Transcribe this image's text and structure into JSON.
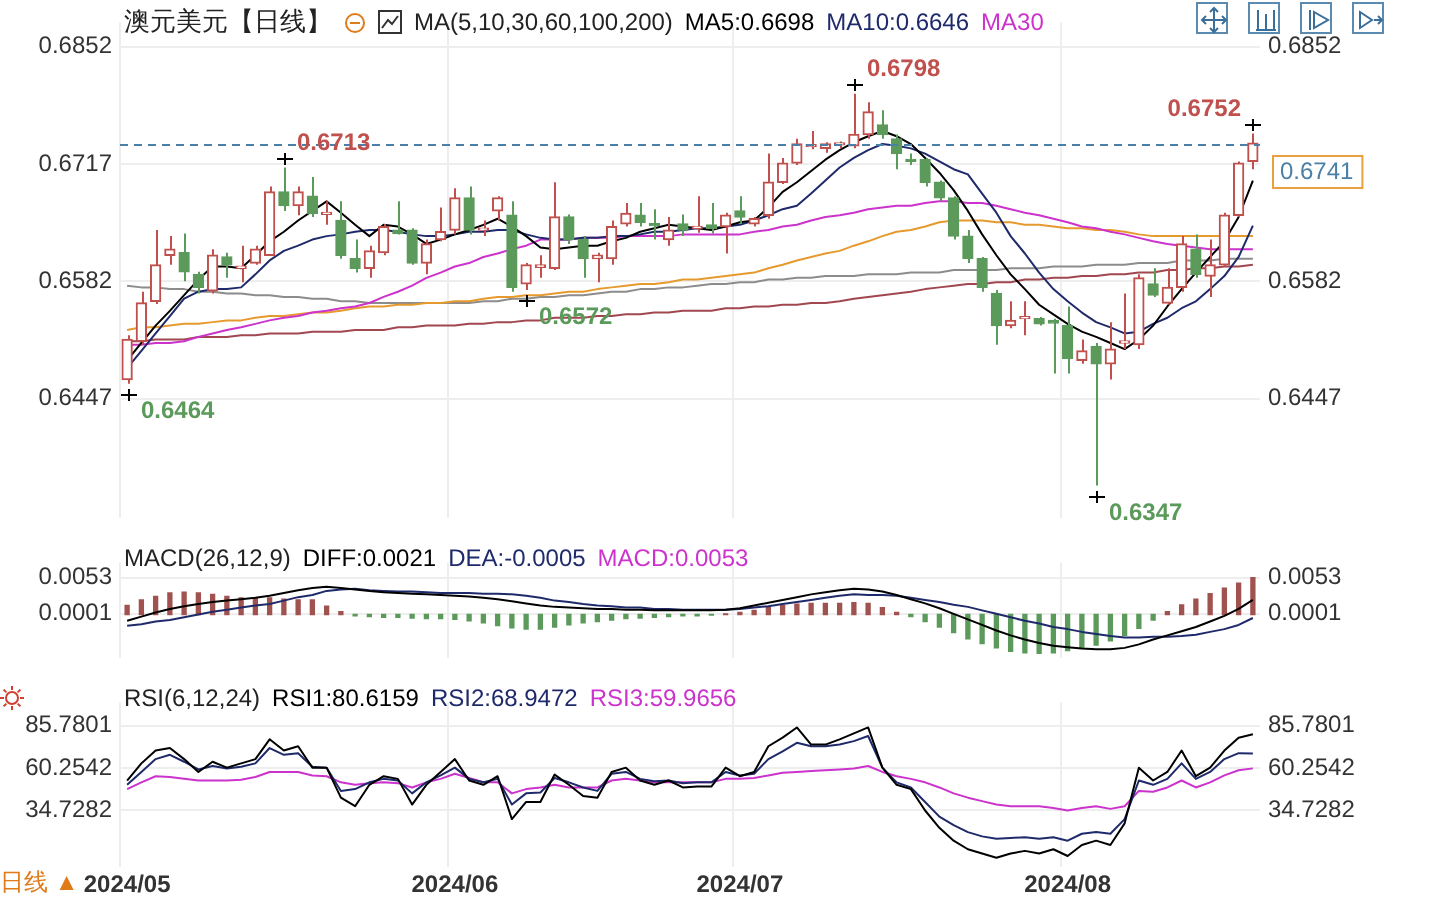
{
  "chart_data": [
    {
      "type": "candlestick",
      "title": "澳元美元【日线】",
      "legend_title": "MA(5,10,30,60,100,200)",
      "legend": "top",
      "grid": true,
      "tick_labels": "y",
      "categories": [
        "2024/05",
        null,
        null,
        null,
        null,
        null,
        null,
        null,
        null,
        null,
        null,
        null,
        null,
        null,
        null,
        null,
        null,
        null,
        null,
        null,
        null,
        null,
        null,
        "2024/06",
        null,
        null,
        null,
        null,
        null,
        null,
        null,
        null,
        null,
        null,
        null,
        null,
        null,
        null,
        null,
        null,
        null,
        null,
        null,
        "2024/07",
        null,
        null,
        null,
        null,
        null,
        null,
        null,
        null,
        null,
        null,
        null,
        null,
        null,
        null,
        null,
        null,
        null,
        null,
        null,
        null,
        null,
        null,
        "2024/08",
        null,
        null,
        null,
        null,
        null,
        null,
        null,
        null,
        null,
        null,
        null,
        null,
        null
      ],
      "ohlc": [
        [
          0.6469,
          0.652,
          0.6464,
          0.6515
        ],
        [
          0.6513,
          0.657,
          0.6509,
          0.6557
        ],
        [
          0.6559,
          0.6641,
          0.6556,
          0.6601
        ],
        [
          0.6612,
          0.6634,
          0.6601,
          0.6619
        ],
        [
          0.6615,
          0.6637,
          0.6582,
          0.6593
        ],
        [
          0.659,
          0.6593,
          0.6568,
          0.6575
        ],
        [
          0.6571,
          0.6619,
          0.6568,
          0.6612
        ],
        [
          0.661,
          0.6615,
          0.6586,
          0.6601
        ],
        [
          0.6597,
          0.6623,
          0.6581,
          0.6599
        ],
        [
          0.6603,
          0.6623,
          0.6601,
          0.6619
        ],
        [
          0.6612,
          0.6691,
          0.6612,
          0.6685
        ],
        [
          0.6685,
          0.6713,
          0.6663,
          0.6669
        ],
        [
          0.6669,
          0.6691,
          0.6658,
          0.6685
        ],
        [
          0.668,
          0.6702,
          0.6656,
          0.666
        ],
        [
          0.6659,
          0.6674,
          0.6647,
          0.6661
        ],
        [
          0.6652,
          0.6674,
          0.6608,
          0.6612
        ],
        [
          0.6608,
          0.663,
          0.6592,
          0.6597
        ],
        [
          0.6597,
          0.6623,
          0.6586,
          0.6617
        ],
        [
          0.6615,
          0.6648,
          0.6612,
          0.6645
        ],
        [
          0.6641,
          0.6674,
          0.6636,
          0.6637
        ],
        [
          0.6641,
          0.6643,
          0.6601,
          0.6603
        ],
        [
          0.6603,
          0.663,
          0.659,
          0.6625
        ],
        [
          0.663,
          0.6667,
          0.6628,
          0.6639
        ],
        [
          0.6641,
          0.6689,
          0.6636,
          0.6678
        ],
        [
          0.6678,
          0.6691,
          0.6636,
          0.6641
        ],
        [
          0.6641,
          0.6652,
          0.6634,
          0.6643
        ],
        [
          0.6663,
          0.668,
          0.6652,
          0.6678
        ],
        [
          0.6658,
          0.6674,
          0.657,
          0.6575
        ],
        [
          0.6579,
          0.6603,
          0.6572,
          0.6601
        ],
        [
          0.6598,
          0.6612,
          0.6586,
          0.6601
        ],
        [
          0.6597,
          0.6696,
          0.6595,
          0.6656
        ],
        [
          0.6656,
          0.6659,
          0.6625,
          0.663
        ],
        [
          0.663,
          0.6634,
          0.6586,
          0.6608
        ],
        [
          0.6608,
          0.6615,
          0.6581,
          0.6612
        ],
        [
          0.6608,
          0.6652,
          0.6601,
          0.6645
        ],
        [
          0.6648,
          0.6672,
          0.6645,
          0.666
        ],
        [
          0.6658,
          0.6672,
          0.6645,
          0.665
        ],
        [
          0.6648,
          0.6665,
          0.663,
          0.6646
        ],
        [
          0.663,
          0.6656,
          0.6623,
          0.6641
        ],
        [
          0.6648,
          0.6659,
          0.6634,
          0.6641
        ],
        [
          0.6643,
          0.668,
          0.6638,
          0.6645
        ],
        [
          0.6647,
          0.6672,
          0.6637,
          0.6643
        ],
        [
          0.6645,
          0.6661,
          0.6614,
          0.6658
        ],
        [
          0.6663,
          0.668,
          0.6648,
          0.6656
        ],
        [
          0.6648,
          0.6656,
          0.6645,
          0.6654
        ],
        [
          0.6658,
          0.6729,
          0.6654,
          0.6696
        ],
        [
          0.6696,
          0.6724,
          0.6694,
          0.6718
        ],
        [
          0.6718,
          0.6746,
          0.6716,
          0.674
        ],
        [
          0.6737,
          0.6755,
          0.6734,
          0.6739
        ],
        [
          0.6735,
          0.6742,
          0.673,
          0.674
        ],
        [
          0.6739,
          0.6743,
          0.6735,
          0.6741
        ],
        [
          0.6738,
          0.6798,
          0.6735,
          0.6751
        ],
        [
          0.6751,
          0.6788,
          0.6746,
          0.6777
        ],
        [
          0.6762,
          0.6779,
          0.6746,
          0.6751
        ],
        [
          0.6746,
          0.6751,
          0.6711,
          0.6729
        ],
        [
          0.6722,
          0.6729,
          0.6716,
          0.672
        ],
        [
          0.6722,
          0.6724,
          0.6691,
          0.6696
        ],
        [
          0.6696,
          0.6698,
          0.6674,
          0.6678
        ],
        [
          0.6678,
          0.668,
          0.663,
          0.6634
        ],
        [
          0.6634,
          0.6641,
          0.6603,
          0.6608
        ],
        [
          0.6608,
          0.661,
          0.657,
          0.6575
        ],
        [
          0.6568,
          0.6572,
          0.6509,
          0.6531
        ],
        [
          0.6531,
          0.6559,
          0.6528,
          0.6537
        ],
        [
          0.6539,
          0.6559,
          0.652,
          0.6541
        ],
        [
          0.6539,
          0.6541,
          0.6531,
          0.6533
        ],
        [
          0.6537,
          0.6539,
          0.6476,
          0.6534
        ],
        [
          0.6531,
          0.6553,
          0.6476,
          0.6493
        ],
        [
          0.6491,
          0.6515,
          0.6487,
          0.6502
        ],
        [
          0.6507,
          0.6511,
          0.6347,
          0.6487
        ],
        [
          0.6487,
          0.6535,
          0.6469,
          0.6504
        ],
        [
          0.6511,
          0.6568,
          0.6504,
          0.6513
        ],
        [
          0.6509,
          0.659,
          0.6504,
          0.6586
        ],
        [
          0.6579,
          0.6597,
          0.6564,
          0.6566
        ],
        [
          0.6557,
          0.6597,
          0.6555,
          0.6575
        ],
        [
          0.6575,
          0.6634,
          0.657,
          0.6625
        ],
        [
          0.6619,
          0.6636,
          0.6586,
          0.659
        ],
        [
          0.6588,
          0.663,
          0.6564,
          0.6601
        ],
        [
          0.6601,
          0.6661,
          0.6599,
          0.6658
        ],
        [
          0.6658,
          0.672,
          0.6656,
          0.6718
        ],
        [
          0.672,
          0.6752,
          0.6711,
          0.6741
        ]
      ],
      "colors": [
        "#c0504d",
        "#c0504d",
        "#c0504d",
        "#c0504d",
        "#5b9a5b",
        "#5b9a5b",
        "#c0504d",
        "#5b9a5b",
        "#c0504d",
        "#c0504d",
        "#c0504d",
        "#5b9a5b",
        "#c0504d",
        "#5b9a5b",
        "#c0504d",
        "#5b9a5b",
        "#5b9a5b",
        "#c0504d",
        "#c0504d",
        "#5b9a5b",
        "#5b9a5b",
        "#c0504d",
        "#c0504d",
        "#c0504d",
        "#5b9a5b",
        "#c0504d",
        "#c0504d",
        "#5b9a5b",
        "#c0504d",
        "#c0504d",
        "#c0504d",
        "#5b9a5b",
        "#5b9a5b",
        "#c0504d",
        "#c0504d",
        "#c0504d",
        "#5b9a5b",
        "#5b9a5b",
        "#c0504d",
        "#5b9a5b",
        "#c0504d",
        "#5b9a5b",
        "#c0504d",
        "#5b9a5b",
        "#c0504d",
        "#c0504d",
        "#c0504d",
        "#c0504d",
        "#c0504d",
        "#c0504d",
        "#c0504d",
        "#c0504d",
        "#c0504d",
        "#5b9a5b",
        "#5b9a5b",
        "#5b9a5b",
        "#5b9a5b",
        "#5b9a5b",
        "#5b9a5b",
        "#5b9a5b",
        "#5b9a5b",
        "#5b9a5b",
        "#c0504d",
        "#c0504d",
        "#5b9a5b",
        "#5b9a5b",
        "#5b9a5b",
        "#c0504d",
        "#5b9a5b",
        "#c0504d",
        "#c0504d",
        "#c0504d",
        "#5b9a5b",
        "#c0504d",
        "#c0504d",
        "#5b9a5b",
        "#c0504d",
        "#c0504d",
        "#c0504d",
        "#c0504d"
      ],
      "series": [
        {
          "type": "line",
          "name": "MA5:0.6698",
          "color": "#000000",
          "values": [
            0.6491,
            0.6511,
            0.6531,
            0.6548,
            0.6566,
            0.6584,
            0.6599,
            0.6599,
            0.6597,
            0.6612,
            0.6628,
            0.6639,
            0.6652,
            0.6663,
            0.6674,
            0.6661,
            0.6647,
            0.6634,
            0.6647,
            0.6645,
            0.6636,
            0.6625,
            0.663,
            0.6636,
            0.6641,
            0.6647,
            0.6654,
            0.6645,
            0.6634,
            0.6621,
            0.6619,
            0.6621,
            0.6623,
            0.6623,
            0.6628,
            0.6632,
            0.6639,
            0.6643,
            0.6647,
            0.6645,
            0.6643,
            0.6641,
            0.6645,
            0.665,
            0.6652,
            0.6667,
            0.6685,
            0.6696,
            0.6709,
            0.6722,
            0.6733,
            0.6742,
            0.6749,
            0.6755,
            0.6749,
            0.674,
            0.6724,
            0.6707,
            0.6687,
            0.6663,
            0.6636,
            0.6612,
            0.659,
            0.6573,
            0.6555,
            0.6544,
            0.6533,
            0.6524,
            0.6518,
            0.6511,
            0.6504,
            0.6515,
            0.6531,
            0.6553,
            0.6573,
            0.6592,
            0.661,
            0.6628,
            0.6656,
            0.6698
          ]
        },
        {
          "type": "line",
          "name": "MA10:0.6646",
          "color": "#1f2a6b",
          "values": [
            0.6482,
            0.6502,
            0.6522,
            0.6542,
            0.6562,
            0.657,
            0.6573,
            0.6573,
            0.6575,
            0.659,
            0.6606,
            0.6617,
            0.6623,
            0.663,
            0.6634,
            0.6636,
            0.6639,
            0.6641,
            0.6641,
            0.6639,
            0.6636,
            0.6634,
            0.6634,
            0.6636,
            0.6639,
            0.6639,
            0.6641,
            0.6641,
            0.6636,
            0.6632,
            0.663,
            0.663,
            0.6632,
            0.6632,
            0.6634,
            0.6634,
            0.6636,
            0.6639,
            0.6639,
            0.6641,
            0.6643,
            0.6643,
            0.6645,
            0.6647,
            0.6652,
            0.6658,
            0.6665,
            0.6669,
            0.6683,
            0.6698,
            0.6713,
            0.6724,
            0.6733,
            0.674,
            0.6738,
            0.6735,
            0.6729,
            0.672,
            0.6711,
            0.6705,
            0.6683,
            0.6661,
            0.6634,
            0.6614,
            0.6592,
            0.6573,
            0.6559,
            0.6546,
            0.6535,
            0.6529,
            0.6522,
            0.6524,
            0.6533,
            0.654,
            0.6551,
            0.6559,
            0.6573,
            0.6588,
            0.661,
            0.6646
          ]
        },
        {
          "type": "line",
          "name": "MA30",
          "color": "#cc33cc",
          "values": [
            0.6509,
            0.6509,
            0.6511,
            0.6511,
            0.6513,
            0.6518,
            0.6522,
            0.6526,
            0.6529,
            0.6533,
            0.6537,
            0.654,
            0.6542,
            0.6546,
            0.6548,
            0.6551,
            0.6553,
            0.6557,
            0.6564,
            0.657,
            0.6577,
            0.6586,
            0.6592,
            0.6599,
            0.6603,
            0.661,
            0.6614,
            0.6619,
            0.6623,
            0.663,
            0.663,
            0.663,
            0.6632,
            0.6632,
            0.6632,
            0.6634,
            0.6634,
            0.6634,
            0.6634,
            0.6636,
            0.6636,
            0.6636,
            0.6636,
            0.6636,
            0.6639,
            0.6641,
            0.6645,
            0.6647,
            0.6652,
            0.6656,
            0.6658,
            0.6661,
            0.6665,
            0.6667,
            0.6669,
            0.6669,
            0.6672,
            0.6674,
            0.6674,
            0.6672,
            0.6672,
            0.6669,
            0.6665,
            0.6661,
            0.6658,
            0.6654,
            0.665,
            0.6645,
            0.6643,
            0.6639,
            0.6636,
            0.6632,
            0.6628,
            0.6625,
            0.6623,
            0.6621,
            0.6619,
            0.6619,
            0.6619,
            0.6619
          ]
        },
        {
          "type": "line",
          "color": "#e69a2e",
          "values": [
            0.6526,
            0.6529,
            0.6529,
            0.6531,
            0.6533,
            0.6533,
            0.6535,
            0.6537,
            0.6537,
            0.654,
            0.6542,
            0.6542,
            0.6544,
            0.6546,
            0.6546,
            0.6548,
            0.6551,
            0.6553,
            0.6553,
            0.6555,
            0.6555,
            0.6557,
            0.6557,
            0.6559,
            0.6559,
            0.6562,
            0.6564,
            0.6564,
            0.6566,
            0.6566,
            0.6568,
            0.657,
            0.657,
            0.6573,
            0.6575,
            0.6577,
            0.6579,
            0.6579,
            0.6581,
            0.6584,
            0.6584,
            0.6586,
            0.6588,
            0.659,
            0.6592,
            0.6597,
            0.6601,
            0.6606,
            0.661,
            0.6614,
            0.6617,
            0.6623,
            0.6628,
            0.6634,
            0.6639,
            0.6641,
            0.6645,
            0.665,
            0.6652,
            0.6652,
            0.6652,
            0.665,
            0.665,
            0.6647,
            0.6647,
            0.6645,
            0.6643,
            0.6643,
            0.6641,
            0.6641,
            0.6639,
            0.6636,
            0.6634,
            0.6634,
            0.6634,
            0.6634,
            0.6634,
            0.6634,
            0.6634,
            0.6634
          ]
        },
        {
          "type": "line",
          "color": "#8c8c8c",
          "values": [
            0.6577,
            0.6575,
            0.6575,
            0.6573,
            0.6573,
            0.657,
            0.657,
            0.6568,
            0.6568,
            0.6566,
            0.6566,
            0.6564,
            0.6564,
            0.6562,
            0.6562,
            0.6559,
            0.6559,
            0.6557,
            0.6557,
            0.6557,
            0.6557,
            0.6557,
            0.6557,
            0.6557,
            0.6557,
            0.6559,
            0.6559,
            0.6562,
            0.6562,
            0.6564,
            0.6564,
            0.6566,
            0.6566,
            0.6568,
            0.657,
            0.657,
            0.6573,
            0.6573,
            0.6575,
            0.6575,
            0.6577,
            0.6579,
            0.6579,
            0.6581,
            0.6581,
            0.6584,
            0.6584,
            0.6586,
            0.6586,
            0.6588,
            0.6588,
            0.6588,
            0.659,
            0.659,
            0.659,
            0.6592,
            0.6592,
            0.6592,
            0.6595,
            0.6595,
            0.6595,
            0.6595,
            0.6597,
            0.6597,
            0.6597,
            0.6599,
            0.6599,
            0.6599,
            0.6601,
            0.6601,
            0.6601,
            0.6603,
            0.6603,
            0.6603,
            0.6606,
            0.6606,
            0.6606,
            0.6608,
            0.6608,
            0.6608
          ]
        },
        {
          "type": "line",
          "color": "#a0474f",
          "values": [
            0.6513,
            0.6513,
            0.6515,
            0.6515,
            0.6515,
            0.6518,
            0.6518,
            0.6518,
            0.652,
            0.652,
            0.6522,
            0.6522,
            0.6522,
            0.6524,
            0.6524,
            0.6524,
            0.6526,
            0.6526,
            0.6526,
            0.6529,
            0.6529,
            0.6531,
            0.6531,
            0.6531,
            0.6533,
            0.6533,
            0.6535,
            0.6535,
            0.6537,
            0.6537,
            0.654,
            0.654,
            0.654,
            0.6542,
            0.6542,
            0.6544,
            0.6544,
            0.6546,
            0.6546,
            0.6548,
            0.6548,
            0.6548,
            0.6551,
            0.6551,
            0.6553,
            0.6553,
            0.6555,
            0.6555,
            0.6557,
            0.6557,
            0.6559,
            0.6562,
            0.6564,
            0.6566,
            0.6568,
            0.657,
            0.6573,
            0.6575,
            0.6577,
            0.6579,
            0.6579,
            0.6581,
            0.6581,
            0.6584,
            0.6584,
            0.6586,
            0.6586,
            0.6588,
            0.6588,
            0.659,
            0.659,
            0.6592,
            0.6592,
            0.6595,
            0.6595,
            0.6597,
            0.6597,
            0.6599,
            0.6599,
            0.6601
          ]
        }
      ],
      "ylim": [
        0.631,
        0.688
      ],
      "yticks": [
        0.6852,
        0.6717,
        0.6582,
        0.6447
      ],
      "y2lim": [
        0.631,
        0.688
      ],
      "y2ticks": [
        0.6852,
        0.6582,
        0.6447
      ],
      "ref_lines": [
        {
          "axis": "y",
          "value": 0.6741,
          "label": "0.6741",
          "color": "#4a7fa8",
          "line_style": "dashed"
        }
      ],
      "annotations": [
        "0.6713",
        "0.6464",
        "0.6572",
        "0.6798",
        "0.6752",
        "0.6347"
      ]
    },
    {
      "type": "bar",
      "legend_title": "MACD(26,12,9)",
      "legend": "top",
      "grid": true,
      "tick_labels": "y",
      "categories": [
        "2024/05",
        null,
        null,
        null,
        null,
        null,
        null,
        null,
        null,
        null,
        null,
        null,
        null,
        null,
        null,
        null,
        null,
        null,
        null,
        null,
        null,
        null,
        null,
        "2024/06",
        null,
        null,
        null,
        null,
        null,
        null,
        null,
        null,
        null,
        null,
        null,
        null,
        null,
        null,
        null,
        null,
        null,
        null,
        null,
        "2024/07",
        null,
        null,
        null,
        null,
        null,
        null,
        null,
        null,
        null,
        null,
        null,
        null,
        null,
        null,
        null,
        null,
        null,
        null,
        null,
        null,
        null,
        null,
        "2024/08",
        null,
        null,
        null,
        null,
        null,
        null,
        null,
        null,
        null,
        null,
        null,
        null,
        null
      ],
      "series": [
        {
          "type": "line",
          "name": "DIFF:0.0021",
          "color": "#000000",
          "values": [
            -0.0009,
            -0.0003,
            0.0003,
            0.0008,
            0.0012,
            0.0015,
            0.0018,
            0.002,
            0.0022,
            0.0024,
            0.0027,
            0.0031,
            0.0035,
            0.0038,
            0.004,
            0.0038,
            0.0036,
            0.0034,
            0.0032,
            0.0031,
            0.003,
            0.0029,
            0.0028,
            0.0027,
            0.0026,
            0.0024,
            0.0022,
            0.0019,
            0.0016,
            0.0013,
            0.0011,
            0.001,
            0.0009,
            0.0008,
            0.0008,
            0.0007,
            0.0007,
            0.0006,
            0.0006,
            0.0006,
            0.0006,
            0.0006,
            0.0007,
            0.0009,
            0.0013,
            0.0017,
            0.0021,
            0.0025,
            0.0029,
            0.0032,
            0.0035,
            0.0037,
            0.0036,
            0.0033,
            0.0028,
            0.0022,
            0.0016,
            0.0009,
            0.0001,
            -0.0007,
            -0.0015,
            -0.0023,
            -0.003,
            -0.0036,
            -0.0041,
            -0.0045,
            -0.0047,
            -0.0049,
            -0.005,
            -0.005,
            -0.0048,
            -0.0043,
            -0.0036,
            -0.003,
            -0.0024,
            -0.0018,
            -0.001,
            -0.0002,
            0.0008,
            0.0021
          ]
        },
        {
          "type": "line",
          "name": "DEA:-0.0005",
          "color": "#1f2a6b",
          "values": [
            -0.0016,
            -0.0014,
            -0.001,
            -0.0008,
            -0.0004,
            0,
            0.0004,
            0.0007,
            0.001,
            0.0013,
            0.0015,
            0.002,
            0.0025,
            0.0028,
            0.0034,
            0.0036,
            0.0037,
            0.0035,
            0.0034,
            0.0033,
            0.0033,
            0.0032,
            0.0031,
            0.0031,
            0.0031,
            0.003,
            0.003,
            0.0029,
            0.0027,
            0.0024,
            0.002,
            0.0018,
            0.0015,
            0.0013,
            0.0012,
            0.001,
            0.001,
            0.0008,
            0.0008,
            0.0007,
            0.0007,
            0.0007,
            0.0007,
            0.0008,
            0.001,
            0.0012,
            0.0015,
            0.0018,
            0.0021,
            0.0024,
            0.0027,
            0.0029,
            0.0028,
            0.0028,
            0.0027,
            0.0024,
            0.0021,
            0.0018,
            0.0014,
            0.0011,
            0.0006,
            0.0001,
            -0.0004,
            -0.0009,
            -0.0013,
            -0.0018,
            -0.0021,
            -0.0025,
            -0.0028,
            -0.0031,
            -0.0033,
            -0.0033,
            -0.0032,
            -0.0032,
            -0.0031,
            -0.0029,
            -0.0025,
            -0.0021,
            -0.0015,
            -0.0005
          ]
        },
        {
          "name": "MACD:0.0053",
          "color": "#cc33cc",
          "colors": [
            "#a0524f",
            "#a0524f",
            "#a0524f",
            "#a0524f",
            "#a0524f",
            "#a0524f",
            "#a0524f",
            "#a0524f",
            "#a0524f",
            "#a0524f",
            "#a0524f",
            "#a0524f",
            "#a0524f",
            "#a0524f",
            "#a0524f",
            "#a0524f",
            "#5b9a5b",
            "#5b9a5b",
            "#5b9a5b",
            "#5b9a5b",
            "#5b9a5b",
            "#5b9a5b",
            "#5b9a5b",
            "#5b9a5b",
            "#5b9a5b",
            "#5b9a5b",
            "#5b9a5b",
            "#5b9a5b",
            "#5b9a5b",
            "#5b9a5b",
            "#5b9a5b",
            "#5b9a5b",
            "#5b9a5b",
            "#5b9a5b",
            "#5b9a5b",
            "#5b9a5b",
            "#5b9a5b",
            "#5b9a5b",
            "#5b9a5b",
            "#5b9a5b",
            "#5b9a5b",
            "#5b9a5b",
            "#a0524f",
            "#a0524f",
            "#a0524f",
            "#a0524f",
            "#a0524f",
            "#a0524f",
            "#a0524f",
            "#a0524f",
            "#a0524f",
            "#a0524f",
            "#a0524f",
            "#a0524f",
            "#a0524f",
            "#5b9a5b",
            "#5b9a5b",
            "#5b9a5b",
            "#5b9a5b",
            "#5b9a5b",
            "#5b9a5b",
            "#5b9a5b",
            "#5b9a5b",
            "#5b9a5b",
            "#5b9a5b",
            "#5b9a5b",
            "#5b9a5b",
            "#5b9a5b",
            "#5b9a5b",
            "#5b9a5b",
            "#5b9a5b",
            "#5b9a5b",
            "#5b9a5b",
            "#a0524f",
            "#a0524f",
            "#a0524f",
            "#a0524f",
            "#a0524f",
            "#a0524f",
            "#a0524f"
          ],
          "values": [
            0.0013,
            0.0021,
            0.0026,
            0.0031,
            0.0032,
            0.0031,
            0.0029,
            0.0026,
            0.0024,
            0.0023,
            0.0024,
            0.0022,
            0.0021,
            0.0021,
            0.0012,
            0.0004,
            -0.0002,
            -0.0003,
            -0.0004,
            -0.0004,
            -0.0005,
            -0.0006,
            -0.0006,
            -0.0007,
            -0.0009,
            -0.0012,
            -0.0016,
            -0.0019,
            -0.0021,
            -0.0021,
            -0.0018,
            -0.0015,
            -0.0012,
            -0.001,
            -0.0008,
            -0.0006,
            -0.0005,
            -0.0004,
            -0.0003,
            -0.0002,
            -0.0002,
            -0.0001,
            0.0001,
            0.0003,
            0.0006,
            0.001,
            0.0013,
            0.0015,
            0.0016,
            0.0016,
            0.0016,
            0.0017,
            0.0016,
            0.001,
            0.0003,
            -0.0003,
            -0.001,
            -0.0018,
            -0.0026,
            -0.0035,
            -0.0042,
            -0.0048,
            -0.0053,
            -0.0055,
            -0.0056,
            -0.0055,
            -0.0052,
            -0.0048,
            -0.0044,
            -0.0038,
            -0.003,
            -0.002,
            -0.0008,
            0.0004,
            0.0014,
            0.0022,
            0.003,
            0.0038,
            0.0045,
            0.0053
          ]
        }
      ],
      "ylim": [
        -0.0062,
        0.0075
      ],
      "yticks": [
        0.0053,
        0.0001
      ],
      "y2lim": [
        -0.0062,
        0.0075
      ],
      "y2ticks": [
        0.0053,
        0.0001
      ]
    },
    {
      "type": "line",
      "legend_title": "RSI(6,12,24)",
      "legend": "top",
      "grid": true,
      "categories": [
        "2024/05",
        null,
        null,
        null,
        null,
        null,
        null,
        null,
        null,
        null,
        null,
        null,
        null,
        null,
        null,
        null,
        null,
        null,
        null,
        null,
        null,
        null,
        null,
        "2024/06",
        null,
        null,
        null,
        null,
        null,
        null,
        null,
        null,
        null,
        null,
        null,
        null,
        null,
        null,
        null,
        null,
        null,
        null,
        null,
        "2024/07",
        null,
        null,
        null,
        null,
        null,
        null,
        null,
        null,
        null,
        null,
        null,
        null,
        null,
        null,
        null,
        null,
        null,
        null,
        null,
        null,
        null,
        null,
        "2024/08",
        null,
        null,
        null,
        null,
        null,
        null,
        null,
        null,
        null,
        null,
        null,
        null,
        null
      ],
      "series": [
        {
          "name": "RSI1:80.6159",
          "color": "#000000",
          "values": [
            52.6,
            63.0,
            70.8,
            72.3,
            65.6,
            57.8,
            64.0,
            60.4,
            63.0,
            65.6,
            77.6,
            70.8,
            73.4,
            60.4,
            60.4,
            42.2,
            37.0,
            50.0,
            55.2,
            53.6,
            38.0,
            50.0,
            57.8,
            65.6,
            52.6,
            50.0,
            55.2,
            29.2,
            39.6,
            39.6,
            56.2,
            50.0,
            43.2,
            42.2,
            57.8,
            60.4,
            52.6,
            50.0,
            52.6,
            48.4,
            48.9,
            48.9,
            60.4,
            55.2,
            57.8,
            73.4,
            78.6,
            84.8,
            74.4,
            74.4,
            77.6,
            81.2,
            84.8,
            60.4,
            50.0,
            47.4,
            34.4,
            23.9,
            16.1,
            10.9,
            8.3,
            5.7,
            8.3,
            9.9,
            8.3,
            10.9,
            6.8,
            13.5,
            16.1,
            13.5,
            26.6,
            60.4,
            52.6,
            57.8,
            70.8,
            55.2,
            60.4,
            70.8,
            78.6,
            80.6159
          ]
        },
        {
          "name": "RSI2:68.9472",
          "color": "#1f2a6b",
          "values": [
            50.0,
            57.8,
            65.6,
            68.2,
            64.0,
            59.3,
            61.4,
            59.9,
            60.9,
            63.0,
            72.3,
            68.2,
            69.2,
            60.9,
            60.4,
            46.3,
            47.4,
            51.5,
            53.6,
            52.6,
            44.8,
            51.5,
            55.7,
            60.4,
            53.6,
            51.5,
            53.6,
            38.0,
            44.8,
            45.3,
            54.1,
            51.5,
            48.4,
            46.3,
            56.7,
            57.8,
            53.6,
            52.1,
            52.6,
            51.0,
            51.5,
            51.5,
            57.8,
            55.7,
            56.7,
            65.6,
            70.3,
            75.5,
            73.4,
            73.4,
            74.4,
            76.5,
            79.6,
            60.4,
            51.5,
            48.4,
            39.6,
            30.7,
            25.5,
            21.3,
            18.7,
            17.2,
            17.7,
            18.2,
            17.2,
            18.2,
            16.1,
            20.3,
            21.3,
            20.3,
            29.2,
            52.6,
            50.0,
            53.6,
            63.0,
            53.6,
            57.8,
            65.6,
            69.2,
            68.9472
          ]
        },
        {
          "name": "RSI3:59.9656",
          "color": "#cc33cc",
          "values": [
            47.4,
            51.5,
            55.2,
            54.7,
            53.6,
            52.6,
            52.6,
            52.6,
            53.1,
            54.7,
            57.8,
            57.8,
            57.8,
            55.7,
            55.2,
            51.5,
            50.0,
            51.0,
            51.5,
            51.0,
            48.4,
            51.5,
            53.6,
            56.7,
            54.1,
            51.5,
            51.5,
            44.8,
            47.4,
            48.4,
            50.0,
            48.4,
            48.4,
            48.4,
            52.6,
            53.6,
            52.6,
            51.5,
            51.5,
            51.5,
            51.5,
            51.5,
            53.6,
            53.6,
            54.1,
            55.7,
            57.3,
            57.8,
            58.3,
            58.8,
            59.3,
            59.9,
            61.4,
            57.8,
            55.2,
            53.6,
            51.5,
            48.4,
            44.8,
            42.2,
            40.1,
            38.0,
            37.0,
            37.0,
            37.0,
            35.9,
            34.4,
            35.9,
            37.0,
            35.4,
            37.0,
            46.3,
            45.8,
            48.4,
            52.6,
            48.4,
            51.5,
            55.7,
            58.8,
            59.9656
          ]
        }
      ],
      "ylim": [
        0,
        100
      ],
      "yticks": [
        85.7801,
        60.2542,
        34.7282
      ],
      "y2lim": [
        0,
        100
      ],
      "y2ticks": [
        85.7801,
        60.2542,
        34.7282
      ],
      "annotations": [
        "日线 ▲"
      ]
    }
  ]
}
